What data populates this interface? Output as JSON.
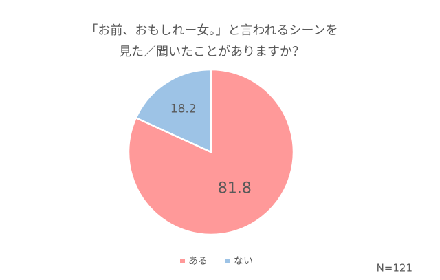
{
  "chart_data": {
    "type": "pie",
    "title": [
      "「お前、おもしれー女。」と言われるシーンを",
      "見た／聞いたことがありますか？"
    ],
    "categories": [
      "ある",
      "ない"
    ],
    "values": [
      81.8,
      18.2
    ],
    "colors": [
      "#ff9999",
      "#9dc3e6"
    ],
    "annotation": "N=121",
    "legend": "bottom"
  }
}
